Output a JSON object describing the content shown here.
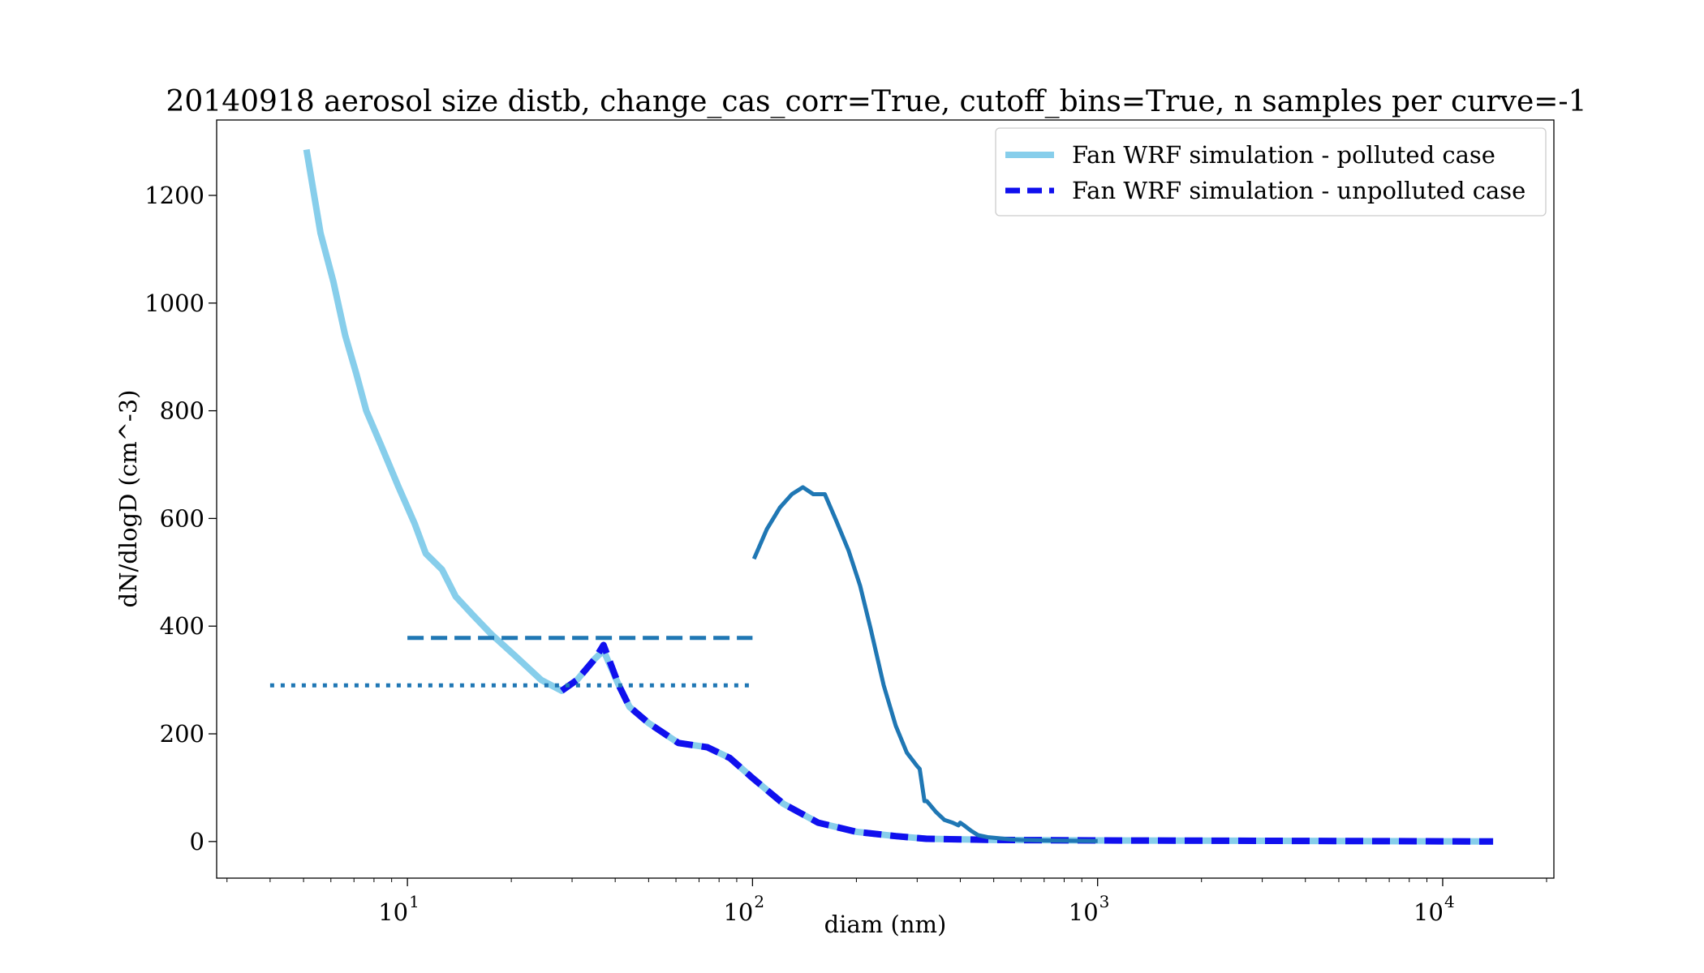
{
  "chart_data": {
    "type": "line",
    "title": "20140918 aerosol size distb, change_cas_corr=True, cutoff_bins=True, n samples per curve=-1",
    "xlabel": "diam (nm)",
    "ylabel": "dN/dlogD (cm^-3)",
    "xscale": "log",
    "xlim": [
      2.8,
      21000
    ],
    "ylim": [
      -68,
      1340
    ],
    "xticks": [
      {
        "value": 10,
        "base": "10",
        "exp": "1"
      },
      {
        "value": 100,
        "base": "10",
        "exp": "2"
      },
      {
        "value": 1000,
        "base": "10",
        "exp": "3"
      },
      {
        "value": 10000,
        "base": "10",
        "exp": "4"
      }
    ],
    "yticks": [
      0,
      200,
      400,
      600,
      800,
      1000,
      1200
    ],
    "grid": false,
    "legend_position": "top-right",
    "series": [
      {
        "name": "Fan WRF simulation - polluted case",
        "style": "solid",
        "color": "#87ceeb",
        "in_legend": true,
        "x": [
          5.1,
          5.6,
          6.1,
          6.6,
          7.1,
          7.6,
          8.4,
          9.4,
          10.5,
          11.3,
          12.6,
          13.8,
          15.5,
          17.5,
          20.5,
          24.4,
          28.0,
          31.0,
          35.0,
          37.0,
          41.0,
          44.0,
          50.0,
          61.0,
          74.0,
          86.0,
          100.0,
          123.0,
          155.0,
          200.0,
          260.0,
          320.0,
          500.0,
          1000.0,
          5000.0,
          14000.0
        ],
        "y": [
          1285,
          1130,
          1040,
          940,
          870,
          800,
          735,
          660,
          590,
          535,
          505,
          455,
          420,
          385,
          345,
          300,
          280,
          300,
          340,
          355,
          290,
          250,
          220,
          183,
          175,
          155,
          118,
          70,
          35,
          18,
          10,
          5,
          3,
          2,
          1,
          0
        ]
      },
      {
        "name": "Fan WRF simulation - unpolluted case",
        "style": "dashed",
        "color": "#1010ee",
        "in_legend": true,
        "x": [
          28.0,
          31.0,
          35.0,
          37.0,
          41.0,
          44.0,
          50.0,
          61.0,
          74.0,
          86.0,
          100.0,
          123.0,
          155.0,
          200.0,
          260.0,
          320.0,
          500.0,
          1000.0,
          5000.0,
          14000.0
        ],
        "y": [
          280,
          300,
          340,
          365,
          290,
          250,
          220,
          183,
          175,
          155,
          118,
          70,
          35,
          18,
          10,
          5,
          3,
          2,
          1,
          0
        ]
      },
      {
        "name": "",
        "style": "solid",
        "color": "#1f77b4",
        "in_legend": false,
        "x": [
          101,
          110,
          120,
          130,
          140,
          150,
          162,
          175,
          190,
          205,
          220,
          240,
          260,
          280,
          300,
          305,
          315,
          320,
          330,
          340,
          360,
          380,
          395,
          400,
          410,
          430,
          450,
          480,
          520,
          560,
          600,
          700,
          1000
        ],
        "y": [
          525,
          580,
          620,
          645,
          658,
          645,
          645,
          595,
          540,
          475,
          395,
          290,
          215,
          165,
          140,
          135,
          75,
          75,
          65,
          55,
          40,
          35,
          30,
          35,
          30,
          20,
          12,
          8,
          6,
          4,
          3,
          2,
          1
        ]
      },
      {
        "name": "",
        "style": "dashed",
        "color": "#1f77b4",
        "in_legend": false,
        "x": [
          10,
          100
        ],
        "y": [
          378,
          378
        ]
      },
      {
        "name": "",
        "style": "dotted",
        "color": "#1f77b4",
        "in_legend": false,
        "x": [
          4.0,
          100
        ],
        "y": [
          290,
          290
        ]
      }
    ]
  }
}
